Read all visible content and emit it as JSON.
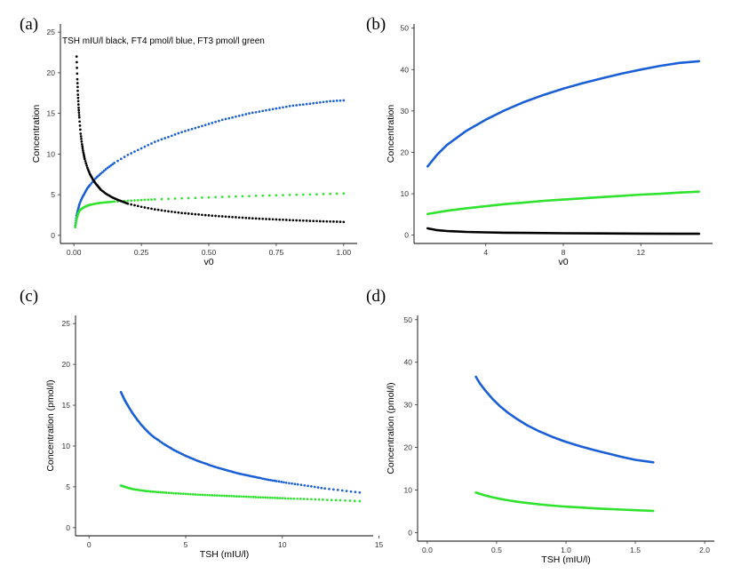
{
  "chart_data": [
    {
      "id": "a",
      "panel_label": "(a)",
      "type": "scatter",
      "annotation": "TSH mIU/l black, FT4 pmol/l blue, FT3 pmol/l green",
      "xlabel": "v0",
      "ylabel": "Concentration",
      "xlim": [
        -0.05,
        1.05
      ],
      "ylim": [
        -1,
        26
      ],
      "xticks": [
        0,
        0.25,
        0.5,
        0.75,
        1.0
      ],
      "xtick_labels": [
        "0.00",
        "0.25",
        "0.50",
        "0.75",
        "1.00"
      ],
      "yticks": [
        0,
        5,
        10,
        15,
        20,
        25
      ],
      "ytick_labels": [
        "0",
        "5",
        "10",
        "15",
        "20",
        "25"
      ],
      "series": [
        {
          "name": "FT4",
          "color": "#1a5fd6",
          "x": [
            0.005,
            0.01,
            0.015,
            0.02,
            0.03,
            0.04,
            0.05,
            0.06,
            0.08,
            0.1,
            0.125,
            0.15,
            0.2,
            0.25,
            0.3,
            0.35,
            0.4,
            0.45,
            0.5,
            0.55,
            0.6,
            0.65,
            0.7,
            0.75,
            0.8,
            0.85,
            0.9,
            0.95,
            1.0
          ],
          "y": [
            1.2,
            2.4,
            3.1,
            3.8,
            4.6,
            5.2,
            5.8,
            6.2,
            7.0,
            7.6,
            8.3,
            8.9,
            9.9,
            10.7,
            11.5,
            12.1,
            12.7,
            13.2,
            13.7,
            14.2,
            14.6,
            15.0,
            15.3,
            15.6,
            15.9,
            16.1,
            16.3,
            16.5,
            16.6
          ]
        },
        {
          "name": "FT3",
          "color": "#2ee22e",
          "x": [
            0.005,
            0.01,
            0.015,
            0.02,
            0.03,
            0.04,
            0.05,
            0.06,
            0.08,
            0.1,
            0.125,
            0.15,
            0.2,
            0.25,
            0.3,
            0.4,
            0.5,
            0.6,
            0.7,
            0.8,
            0.9,
            1.0
          ],
          "y": [
            1.0,
            2.0,
            2.6,
            3.0,
            3.3,
            3.5,
            3.65,
            3.75,
            3.9,
            4.0,
            4.08,
            4.15,
            4.25,
            4.35,
            4.42,
            4.55,
            4.67,
            4.78,
            4.88,
            4.97,
            5.05,
            5.15
          ]
        },
        {
          "name": "TSH",
          "color": "#000000",
          "x": [
            0.01,
            0.0125,
            0.015,
            0.0175,
            0.02,
            0.025,
            0.03,
            0.035,
            0.04,
            0.05,
            0.06,
            0.07,
            0.08,
            0.09,
            0.1,
            0.12,
            0.14,
            0.16,
            0.18,
            0.2,
            0.25,
            0.3,
            0.35,
            0.4,
            0.45,
            0.5,
            0.55,
            0.6,
            0.65,
            0.7,
            0.75,
            0.8,
            0.85,
            0.9,
            0.95,
            1.0
          ],
          "y": [
            22.0,
            19.2,
            17.3,
            15.7,
            14.5,
            12.5,
            11.2,
            10.2,
            9.4,
            8.3,
            7.5,
            6.9,
            6.4,
            6.0,
            5.6,
            5.1,
            4.7,
            4.4,
            4.15,
            3.9,
            3.5,
            3.2,
            2.95,
            2.75,
            2.6,
            2.45,
            2.33,
            2.22,
            2.12,
            2.03,
            1.95,
            1.88,
            1.81,
            1.75,
            1.7,
            1.65
          ]
        }
      ]
    },
    {
      "id": "b",
      "panel_label": "(b)",
      "type": "line",
      "xlabel": "v0",
      "ylabel": "Concentration",
      "xlim": [
        0.3,
        15.7
      ],
      "ylim": [
        -2,
        51
      ],
      "xticks": [
        4,
        8,
        12
      ],
      "xtick_labels": [
        "4",
        "8",
        "12"
      ],
      "yticks": [
        0,
        10,
        20,
        30,
        40,
        50
      ],
      "ytick_labels": [
        "0",
        "10",
        "20",
        "30",
        "40",
        "50"
      ],
      "series": [
        {
          "name": "FT4",
          "color": "#1a5fd6",
          "x": [
            1,
            1.5,
            2,
            3,
            4,
            5,
            6,
            7,
            8,
            9,
            10,
            11,
            12,
            13,
            14,
            15
          ],
          "y": [
            16.6,
            19.5,
            21.8,
            25.2,
            27.9,
            30.2,
            32.2,
            33.9,
            35.4,
            36.7,
            37.9,
            39.0,
            40.0,
            40.9,
            41.6,
            42.0
          ]
        },
        {
          "name": "FT3",
          "color": "#2ee22e",
          "x": [
            1,
            2,
            3,
            4,
            5,
            6,
            7,
            8,
            9,
            10,
            11,
            12,
            13,
            14,
            15
          ],
          "y": [
            5.1,
            5.9,
            6.5,
            7.0,
            7.5,
            7.9,
            8.3,
            8.6,
            8.9,
            9.2,
            9.5,
            9.8,
            10.0,
            10.3,
            10.5
          ]
        },
        {
          "name": "TSH",
          "color": "#000000",
          "x": [
            1,
            1.5,
            2,
            3,
            4,
            5,
            6,
            8,
            10,
            12,
            15
          ],
          "y": [
            1.65,
            1.2,
            1.0,
            0.8,
            0.68,
            0.6,
            0.55,
            0.47,
            0.42,
            0.38,
            0.33
          ]
        }
      ]
    },
    {
      "id": "c",
      "panel_label": "(c)",
      "type": "scatter",
      "xlabel": "TSH (mIU/l)",
      "ylabel": "Concentration (pmol/l)",
      "xlim": [
        -0.7,
        14.7
      ],
      "ylim": [
        -1,
        26
      ],
      "xticks": [
        0,
        5,
        10,
        15
      ],
      "xtick_labels": [
        "0",
        "5",
        "10",
        "15"
      ],
      "yticks": [
        0,
        5,
        10,
        15,
        20,
        25
      ],
      "ytick_labels": [
        "0",
        "5",
        "10",
        "15",
        "20",
        "25"
      ],
      "series": [
        {
          "name": "FT4",
          "color": "#1a5fd6",
          "x": [
            1.65,
            1.75,
            1.85,
            1.95,
            2.05,
            2.2,
            2.35,
            2.5,
            2.7,
            2.9,
            3.1,
            3.35,
            3.6,
            3.9,
            4.15,
            4.4,
            4.7,
            5.0,
            5.3,
            5.6,
            5.9,
            6.2,
            6.5,
            6.8,
            7.1,
            7.4,
            7.7,
            8.0,
            8.3,
            8.6,
            8.9,
            9.3,
            9.7,
            10.2,
            10.8,
            11.5,
            12.2,
            13.1,
            14.0
          ],
          "y": [
            16.6,
            16.1,
            15.6,
            15.2,
            14.8,
            14.2,
            13.7,
            13.2,
            12.6,
            12.1,
            11.6,
            11.1,
            10.7,
            10.2,
            9.85,
            9.5,
            9.15,
            8.8,
            8.5,
            8.2,
            7.95,
            7.7,
            7.45,
            7.25,
            7.05,
            6.85,
            6.65,
            6.5,
            6.35,
            6.2,
            6.05,
            5.85,
            5.7,
            5.5,
            5.3,
            5.05,
            4.8,
            4.55,
            4.3
          ]
        },
        {
          "name": "FT3",
          "color": "#2ee22e",
          "x": [
            1.65,
            1.85,
            2.05,
            2.3,
            2.6,
            2.9,
            3.2,
            3.6,
            4.0,
            4.5,
            5.0,
            5.5,
            6.0,
            6.5,
            7.0,
            7.5,
            8.0,
            8.5,
            9.0,
            9.5,
            10.0,
            10.6,
            11.3,
            12.1,
            13.0,
            14.0
          ],
          "y": [
            5.15,
            5.0,
            4.85,
            4.7,
            4.6,
            4.5,
            4.42,
            4.35,
            4.28,
            4.2,
            4.13,
            4.06,
            4.0,
            3.95,
            3.9,
            3.85,
            3.8,
            3.75,
            3.7,
            3.65,
            3.6,
            3.55,
            3.5,
            3.42,
            3.35,
            3.25
          ]
        }
      ]
    },
    {
      "id": "d",
      "panel_label": "(d)",
      "type": "line",
      "xlabel": "TSH (mIU/l)",
      "ylabel": "Concentration (pmol/l)",
      "xlim": [
        -0.07,
        2.07
      ],
      "ylim": [
        -2,
        51
      ],
      "xticks": [
        0,
        0.5,
        1.0,
        1.5,
        2.0
      ],
      "xtick_labels": [
        "0.0",
        "0.5",
        "1.0",
        "1.5",
        "2.0"
      ],
      "yticks": [
        0,
        10,
        20,
        30,
        40,
        50
      ],
      "ytick_labels": [
        "0",
        "10",
        "20",
        "30",
        "40",
        "50"
      ],
      "series": [
        {
          "name": "FT4",
          "color": "#1a5fd6",
          "x": [
            0.35,
            0.38,
            0.42,
            0.47,
            0.52,
            0.58,
            0.65,
            0.72,
            0.8,
            0.9,
            1.0,
            1.1,
            1.2,
            1.3,
            1.4,
            1.5,
            1.63
          ],
          "y": [
            36.6,
            35.0,
            33.3,
            31.4,
            29.8,
            28.2,
            26.6,
            25.2,
            23.9,
            22.5,
            21.3,
            20.3,
            19.4,
            18.6,
            17.8,
            17.1,
            16.5
          ]
        },
        {
          "name": "FT3",
          "color": "#2ee22e",
          "x": [
            0.35,
            0.38,
            0.42,
            0.47,
            0.52,
            0.58,
            0.65,
            0.72,
            0.8,
            0.9,
            1.0,
            1.1,
            1.2,
            1.3,
            1.4,
            1.5,
            1.63
          ],
          "y": [
            9.4,
            9.1,
            8.7,
            8.3,
            7.95,
            7.6,
            7.25,
            6.95,
            6.65,
            6.35,
            6.1,
            5.9,
            5.7,
            5.55,
            5.4,
            5.27,
            5.1
          ]
        }
      ]
    }
  ]
}
